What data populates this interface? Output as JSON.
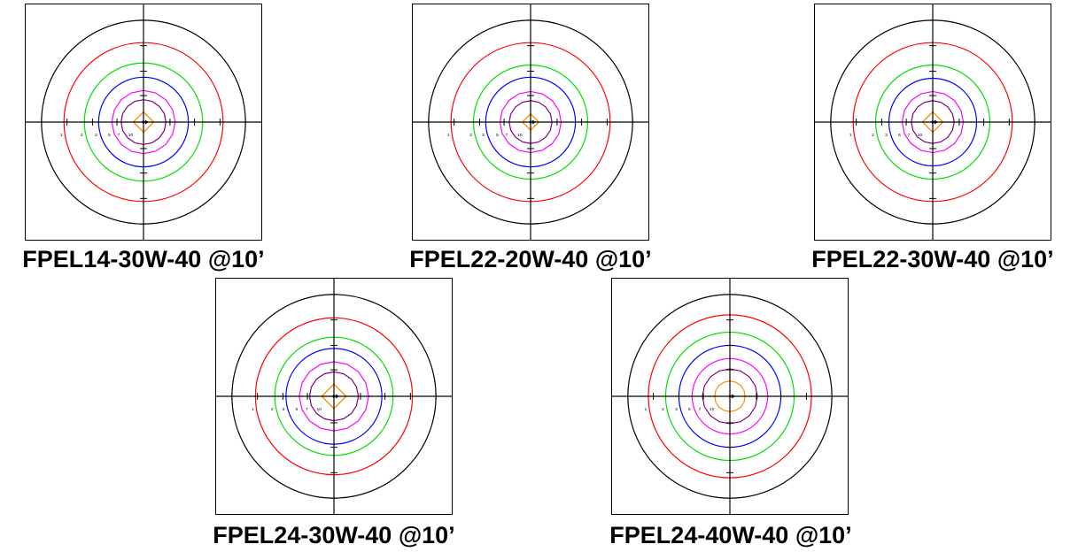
{
  "panels": [
    {
      "caption": "FPEL14-30W-40 @10’",
      "contours": [
        {
          "color": "#ff0000",
          "r": 0.78,
          "label": "1"
        },
        {
          "color": "#00e000",
          "r": 0.58,
          "label": "2"
        },
        {
          "color": "#0000ff",
          "r": 0.44,
          "label": "3"
        },
        {
          "color": "#ff00ff",
          "r": 0.31,
          "label": "5"
        },
        {
          "color": "#800080",
          "r": 0.22,
          "label": "7"
        },
        {
          "color": "#ff8c00",
          "r": 0.1,
          "label": "10",
          "diamond": true
        }
      ]
    },
    {
      "caption": "FPEL22-20W-40 @10’",
      "contours": [
        {
          "color": "#ff0000",
          "r": 0.78,
          "label": "1"
        },
        {
          "color": "#00e000",
          "r": 0.56,
          "label": "2"
        },
        {
          "color": "#0000ff",
          "r": 0.44,
          "label": "3"
        },
        {
          "color": "#ff00ff",
          "r": 0.3,
          "label": "5"
        },
        {
          "color": "#800080",
          "r": 0.21,
          "label": "7"
        },
        {
          "color": "#ff8c00",
          "r": 0.08,
          "label": "10",
          "diamond": true
        }
      ]
    },
    {
      "caption": "FPEL22-30W-40 @10’",
      "contours": [
        {
          "color": "#ff0000",
          "r": 0.78,
          "label": "1"
        },
        {
          "color": "#00e000",
          "r": 0.56,
          "label": "2"
        },
        {
          "color": "#0000ff",
          "r": 0.43,
          "label": "3"
        },
        {
          "color": "#ff00ff",
          "r": 0.3,
          "label": "5"
        },
        {
          "color": "#800080",
          "r": 0.21,
          "label": "7"
        },
        {
          "color": "#ff8c00",
          "r": 0.1,
          "label": "10",
          "diamond": true
        }
      ]
    },
    {
      "caption": "FPEL24-30W-40 @10’",
      "contours": [
        {
          "color": "#ff0000",
          "r": 0.77,
          "label": "1"
        },
        {
          "color": "#00e000",
          "r": 0.58,
          "label": "2"
        },
        {
          "color": "#0000ff",
          "r": 0.47,
          "label": "3"
        },
        {
          "color": "#ff00ff",
          "r": 0.34,
          "label": "5"
        },
        {
          "color": "#800080",
          "r": 0.24,
          "label": "7"
        },
        {
          "color": "#ff8c00",
          "r": 0.12,
          "label": "10",
          "diamond": true
        }
      ]
    },
    {
      "caption": "FPEL24-40W-40 @10’",
      "contours": [
        {
          "color": "#ff0000",
          "r": 0.8,
          "label": "1"
        },
        {
          "color": "#00e000",
          "r": 0.63,
          "label": "2"
        },
        {
          "color": "#0000ff",
          "r": 0.5,
          "label": "3"
        },
        {
          "color": "#ff00ff",
          "r": 0.37,
          "label": "5"
        },
        {
          "color": "#800080",
          "r": 0.27,
          "label": "7"
        },
        {
          "color": "#ff8c00",
          "r": 0.15,
          "label": "10",
          "diamond": false
        }
      ]
    }
  ]
}
